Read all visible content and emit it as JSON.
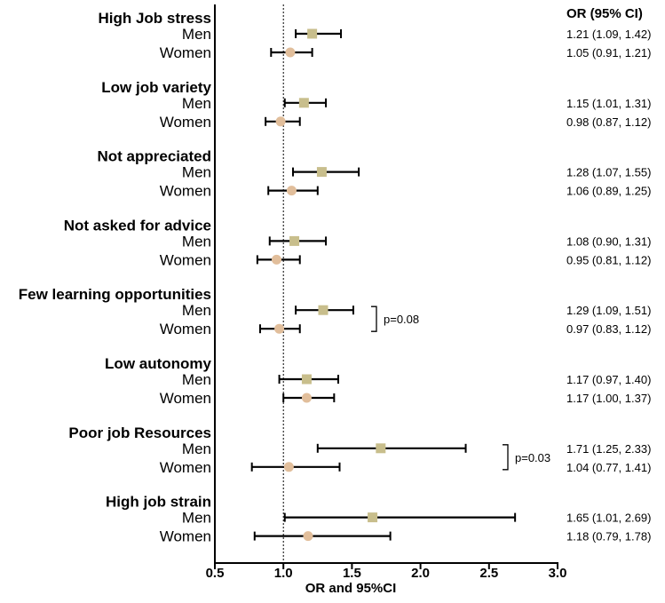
{
  "chart_data": {
    "type": "forest",
    "xlabel": "OR and 95%CI",
    "xlim": [
      0.5,
      3.0
    ],
    "xticks": [
      "0.5",
      "1.0",
      "1.5",
      "2.0",
      "2.5",
      "3.0"
    ],
    "reference_line": 1.0,
    "header": "OR (95% CI)",
    "series_colors": {
      "Men": "#C8BE8C",
      "Women": "#E1BE9B"
    },
    "series_markers": {
      "Men": "square",
      "Women": "circle"
    },
    "groups": [
      {
        "name": "High Job stress",
        "rows": [
          {
            "sex": "Men",
            "or": 1.21,
            "lo": 1.09,
            "hi": 1.42,
            "label": "1.21 (1.09, 1.42)"
          },
          {
            "sex": "Women",
            "or": 1.05,
            "lo": 0.91,
            "hi": 1.21,
            "label": "1.05 (0.91, 1.21)"
          }
        ]
      },
      {
        "name": "Low job variety",
        "rows": [
          {
            "sex": "Men",
            "or": 1.15,
            "lo": 1.01,
            "hi": 1.31,
            "label": "1.15 (1.01, 1.31)"
          },
          {
            "sex": "Women",
            "or": 0.98,
            "lo": 0.87,
            "hi": 1.12,
            "label": "0.98 (0.87, 1.12)"
          }
        ]
      },
      {
        "name": "Not appreciated",
        "rows": [
          {
            "sex": "Men",
            "or": 1.28,
            "lo": 1.07,
            "hi": 1.55,
            "label": "1.28 (1.07, 1.55)"
          },
          {
            "sex": "Women",
            "or": 1.06,
            "lo": 0.89,
            "hi": 1.25,
            "label": "1.06 (0.89, 1.25)"
          }
        ]
      },
      {
        "name": "Not asked for advice",
        "rows": [
          {
            "sex": "Men",
            "or": 1.08,
            "lo": 0.9,
            "hi": 1.31,
            "label": "1.08 (0.90, 1.31)"
          },
          {
            "sex": "Women",
            "or": 0.95,
            "lo": 0.81,
            "hi": 1.12,
            "label": "0.95 (0.81, 1.12)"
          }
        ]
      },
      {
        "name": "Few learning opportunities",
        "pvalue": "p=0.08",
        "rows": [
          {
            "sex": "Men",
            "or": 1.29,
            "lo": 1.09,
            "hi": 1.51,
            "label": "1.29 (1.09, 1.51)"
          },
          {
            "sex": "Women",
            "or": 0.97,
            "lo": 0.83,
            "hi": 1.12,
            "label": "0.97 (0.83, 1.12)"
          }
        ]
      },
      {
        "name": "Low autonomy",
        "rows": [
          {
            "sex": "Men",
            "or": 1.17,
            "lo": 0.97,
            "hi": 1.4,
            "label": "1.17 (0.97, 1.40)"
          },
          {
            "sex": "Women",
            "or": 1.17,
            "lo": 1.0,
            "hi": 1.37,
            "label": "1.17 (1.00, 1.37)"
          }
        ]
      },
      {
        "name": "Poor job Resources",
        "pvalue": "p=0.03",
        "rows": [
          {
            "sex": "Men",
            "or": 1.71,
            "lo": 1.25,
            "hi": 2.33,
            "label": "1.71 (1.25, 2.33)"
          },
          {
            "sex": "Women",
            "or": 1.04,
            "lo": 0.77,
            "hi": 1.41,
            "label": "1.04 (0.77, 1.41)"
          }
        ]
      },
      {
        "name": "High job strain",
        "rows": [
          {
            "sex": "Men",
            "or": 1.65,
            "lo": 1.01,
            "hi": 2.69,
            "label": "1.65 (1.01, 2.69)"
          },
          {
            "sex": "Women",
            "or": 1.18,
            "lo": 0.79,
            "hi": 1.78,
            "label": "1.18 (0.79, 1.78)"
          }
        ]
      }
    ]
  }
}
